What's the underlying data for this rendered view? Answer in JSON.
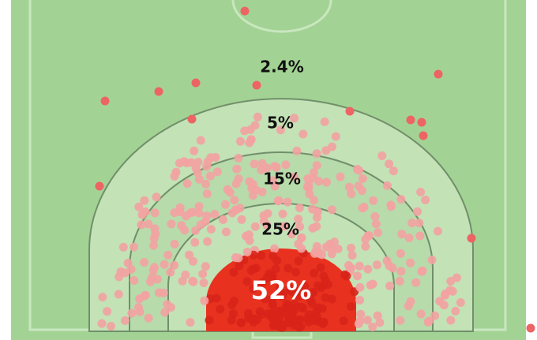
{
  "zones": [
    {
      "label": "2.4%"
    },
    {
      "label": "5%"
    },
    {
      "label": "15%"
    },
    {
      "label": "25%"
    },
    {
      "label": "52%"
    }
  ]
}
